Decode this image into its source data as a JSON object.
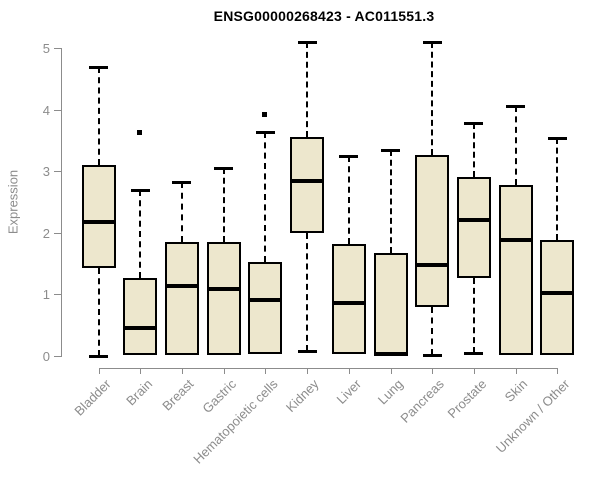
{
  "chart_data": {
    "type": "boxplot",
    "title": "ENSG00000268423 - AC011551.3",
    "ylabel": "Expression",
    "xlabel": "",
    "ylim": [
      0,
      5.2
    ],
    "yticks": [
      0,
      1,
      2,
      3,
      4,
      5
    ],
    "grid": false,
    "legend": "none",
    "categories": [
      "Bladder",
      "Brain",
      "Breast",
      "Gastric",
      "Hematopoietic cells",
      "Kidney",
      "Liver",
      "Lung",
      "Pancreas",
      "Prostate",
      "Skin",
      "Unknown / Other"
    ],
    "series": [
      {
        "category": "Bladder",
        "whisker_low": 0.0,
        "q1": 1.43,
        "median": 2.18,
        "q3": 3.1,
        "whisker_high": 4.69,
        "outliers": []
      },
      {
        "category": "Brain",
        "whisker_low": null,
        "q1": 0.02,
        "median": 0.46,
        "q3": 1.27,
        "whisker_high": 2.69,
        "outliers": [
          3.64
        ]
      },
      {
        "category": "Breast",
        "whisker_low": null,
        "q1": 0.01,
        "median": 1.14,
        "q3": 1.85,
        "whisker_high": 2.83,
        "outliers": []
      },
      {
        "category": "Gastric",
        "whisker_low": null,
        "q1": 0.01,
        "median": 1.08,
        "q3": 1.85,
        "whisker_high": 3.06,
        "outliers": []
      },
      {
        "category": "Hematopoietic cells",
        "whisker_low": null,
        "q1": 0.03,
        "median": 0.91,
        "q3": 1.53,
        "whisker_high": 3.64,
        "outliers": [
          3.93
        ]
      },
      {
        "category": "Kidney",
        "whisker_low": 0.08,
        "q1": 2.0,
        "median": 2.84,
        "q3": 3.56,
        "whisker_high": 5.1,
        "outliers": []
      },
      {
        "category": "Liver",
        "whisker_low": null,
        "q1": 0.03,
        "median": 0.86,
        "q3": 1.82,
        "whisker_high": 3.25,
        "outliers": []
      },
      {
        "category": "Lung",
        "whisker_low": null,
        "q1": 0.0,
        "median": 0.04,
        "q3": 1.67,
        "whisker_high": 3.35,
        "outliers": []
      },
      {
        "category": "Pancreas",
        "whisker_low": 0.02,
        "q1": 0.8,
        "median": 1.48,
        "q3": 3.26,
        "whisker_high": 5.1,
        "outliers": []
      },
      {
        "category": "Prostate",
        "whisker_low": 0.05,
        "q1": 1.27,
        "median": 2.21,
        "q3": 2.91,
        "whisker_high": 3.79,
        "outliers": []
      },
      {
        "category": "Skin",
        "whisker_low": null,
        "q1": 0.01,
        "median": 1.88,
        "q3": 2.78,
        "whisker_high": 4.06,
        "outliers": []
      },
      {
        "category": "Unknown / Other",
        "whisker_low": null,
        "q1": 0.01,
        "median": 1.02,
        "q3": 1.88,
        "whisker_high": 3.54,
        "outliers": []
      }
    ],
    "colors": {
      "box_fill": "#EDE7CD",
      "box_stroke": "#000000",
      "median": "#000000",
      "whisker": "#000000",
      "axis": "#8C8C8C",
      "tick_label": "#8C8C8C",
      "title": "#000000",
      "background": "#FFFFFF"
    }
  }
}
